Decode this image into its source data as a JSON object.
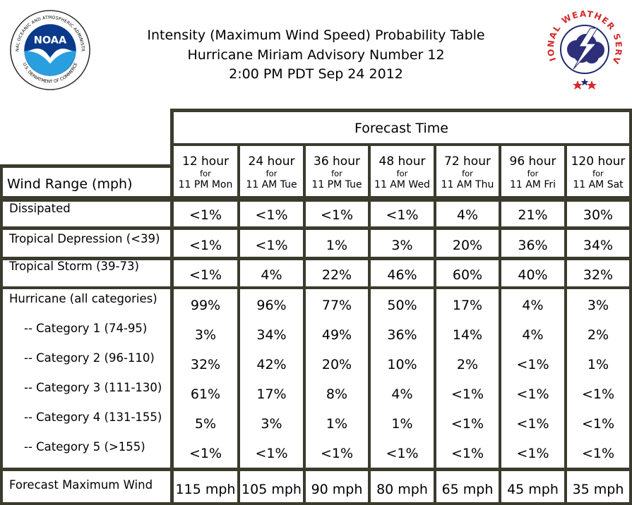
{
  "header": {
    "title_line1": "Intensity (Maximum Wind Speed) Probability Table",
    "title_line2": "Hurricane Miriam Advisory Number 12",
    "title_line3": "2:00 PM PDT Sep 24 2012"
  },
  "logos": {
    "noaa_text": "NOAA",
    "noaa_ring": "NATIONAL OCEANIC AND ATMOSPHERIC ADMINISTRATION",
    "noaa_ring_bottom": "U.S. DEPARTMENT OF COMMERCE",
    "nws_ring": "NATIONAL WEATHER SERVICE"
  },
  "table": {
    "forecast_time_label": "Forecast Time",
    "wind_range_label": "Wind Range (mph)",
    "columns": [
      {
        "hour": "12 hour",
        "for": "for",
        "time": "11 PM Mon"
      },
      {
        "hour": "24 hour",
        "for": "for",
        "time": "11 AM Tue"
      },
      {
        "hour": "36 hour",
        "for": "for",
        "time": "11 PM Tue"
      },
      {
        "hour": "48 hour",
        "for": "for",
        "time": "11 AM Wed"
      },
      {
        "hour": "72 hour",
        "for": "for",
        "time": "11 AM Thu"
      },
      {
        "hour": "96 hour",
        "for": "for",
        "time": "11 AM Fri"
      },
      {
        "hour": "120 hour",
        "for": "for",
        "time": "11 AM Sat"
      }
    ],
    "rows": [
      {
        "label": "Dissipated",
        "values": [
          "<1%",
          "<1%",
          "<1%",
          "<1%",
          "4%",
          "21%",
          "30%"
        ]
      },
      {
        "label": "Tropical Depression (<39)",
        "values": [
          "<1%",
          "<1%",
          "1%",
          "3%",
          "20%",
          "36%",
          "34%"
        ]
      },
      {
        "label": "Tropical Storm (39-73)",
        "values": [
          "<1%",
          "4%",
          "22%",
          "46%",
          "60%",
          "40%",
          "32%"
        ]
      },
      {
        "label": "Hurricane (all categories)",
        "values": [
          "99%",
          "96%",
          "77%",
          "50%",
          "17%",
          "4%",
          "3%"
        ]
      },
      {
        "label": "-- Category 1 (74-95)",
        "values": [
          "3%",
          "34%",
          "49%",
          "36%",
          "14%",
          "4%",
          "2%"
        ]
      },
      {
        "label": "-- Category 2 (96-110)",
        "values": [
          "32%",
          "42%",
          "20%",
          "10%",
          "2%",
          "<1%",
          "1%"
        ]
      },
      {
        "label": "-- Category 3 (111-130)",
        "values": [
          "61%",
          "17%",
          "8%",
          "4%",
          "<1%",
          "<1%",
          "<1%"
        ]
      },
      {
        "label": "-- Category 4 (131-155)",
        "values": [
          "5%",
          "3%",
          "1%",
          "1%",
          "<1%",
          "<1%",
          "<1%"
        ]
      },
      {
        "label": "-- Category 5 (>155)",
        "values": [
          "<1%",
          "<1%",
          "<1%",
          "<1%",
          "<1%",
          "<1%",
          "<1%"
        ]
      }
    ],
    "max_wind": {
      "label": "Forecast Maximum Wind",
      "values": [
        "115 mph",
        "105 mph",
        "90 mph",
        "80 mph",
        "65 mph",
        "45 mph",
        "35 mph"
      ]
    }
  }
}
